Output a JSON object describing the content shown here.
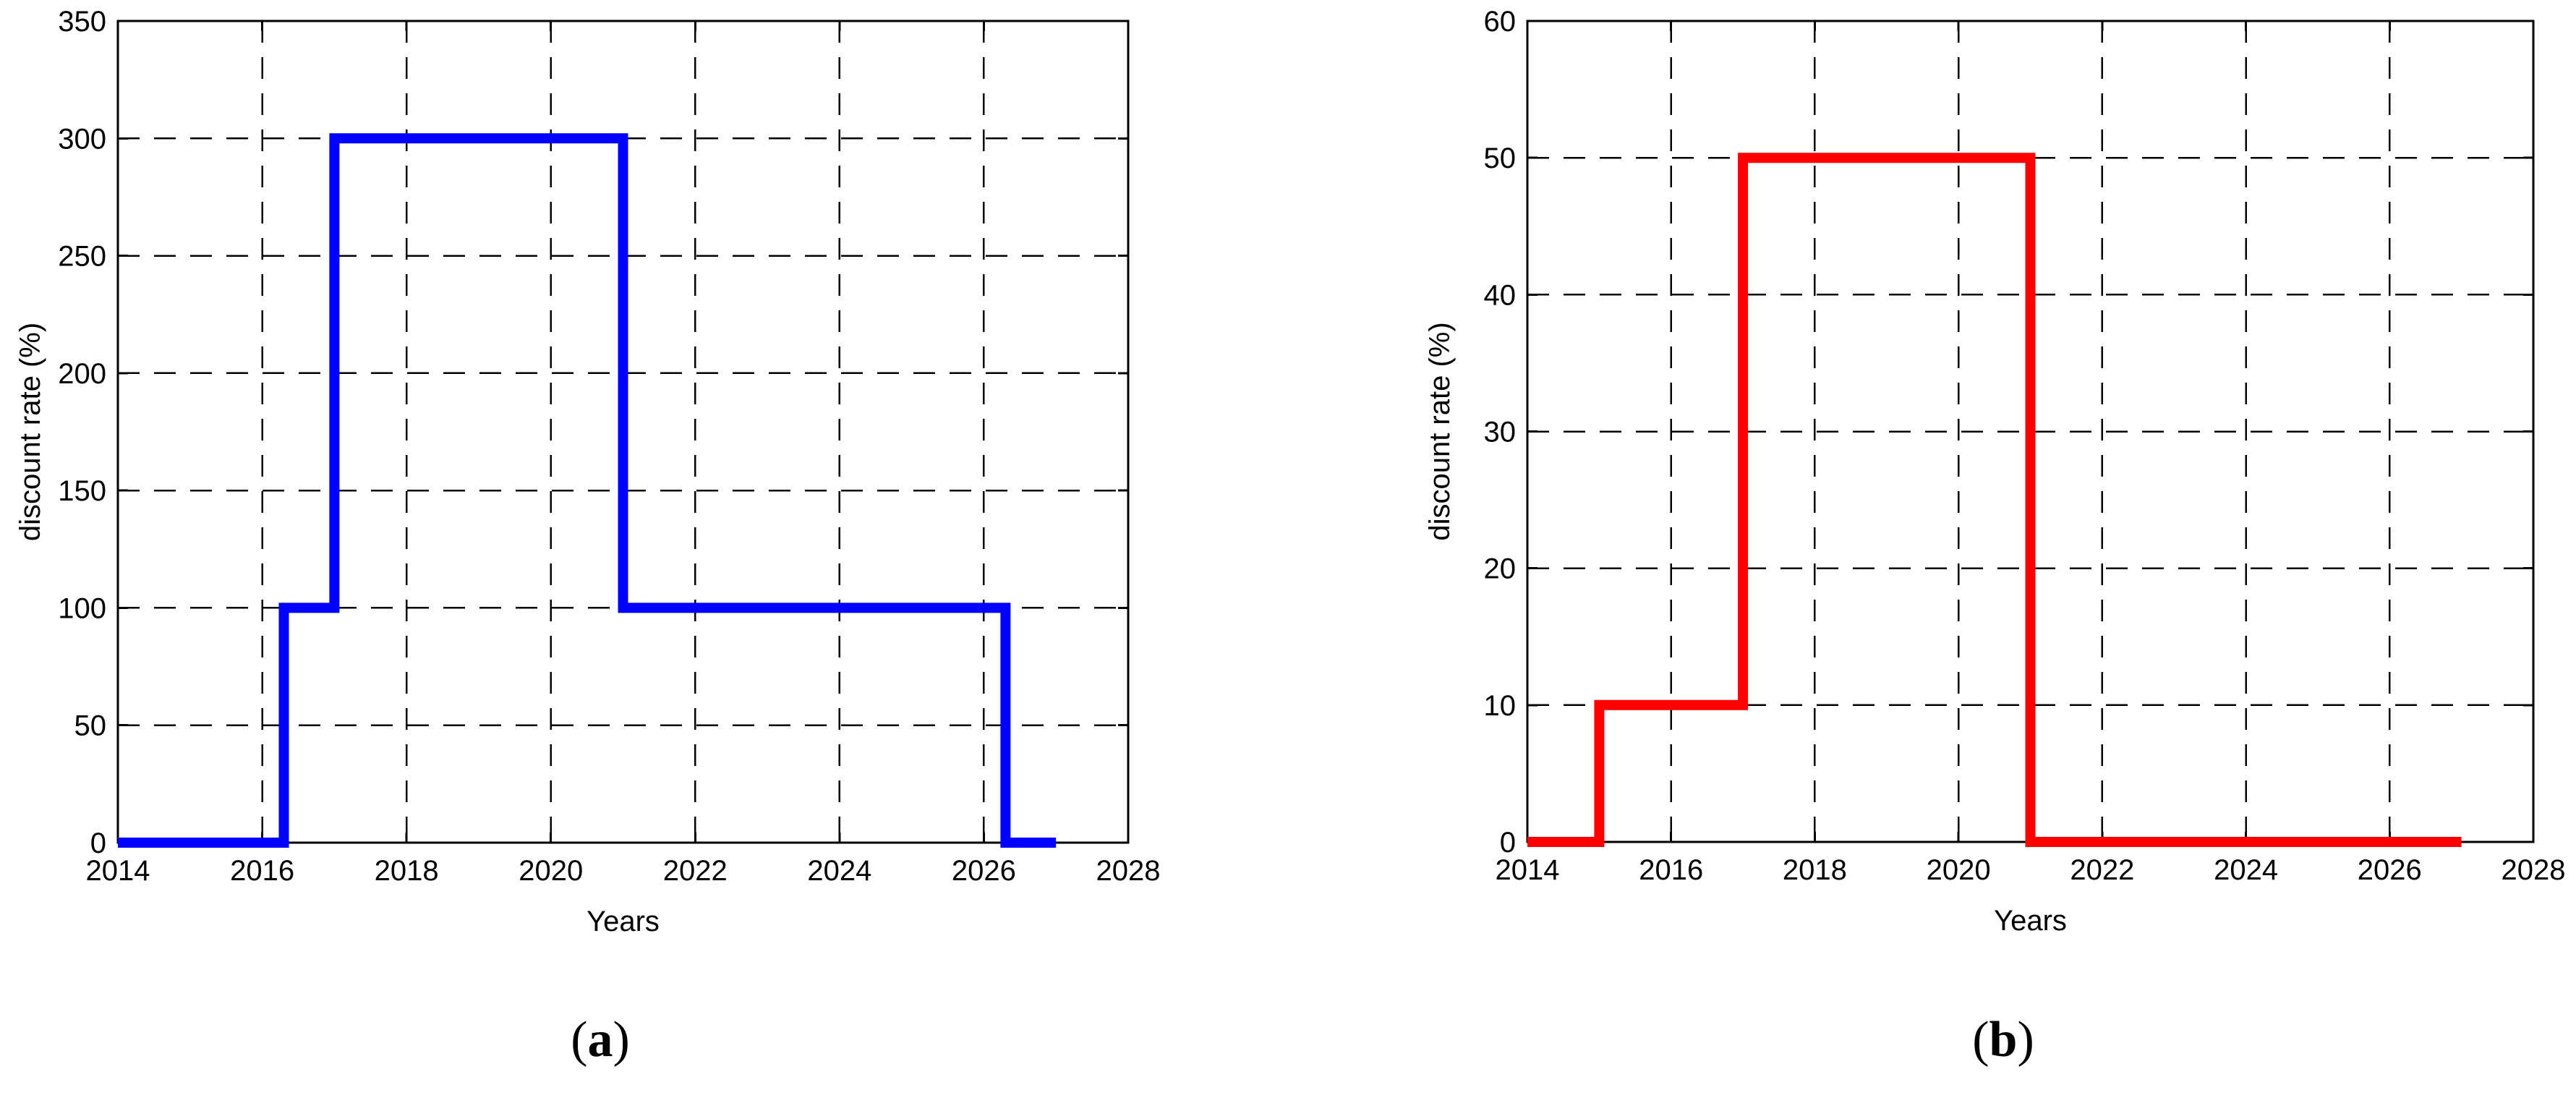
{
  "figure": {
    "background": "#ffffff",
    "text_color": "#000000",
    "grid_color": "#000000",
    "grid_dash": "30 20"
  },
  "captions": {
    "a": {
      "pre": "(",
      "label": "a",
      "post": ")"
    },
    "b": {
      "pre": "(",
      "label": "b",
      "post": ")"
    }
  },
  "chart_data": [
    {
      "id": "a",
      "type": "line",
      "line_style": "step",
      "title": "",
      "xlabel": "Years",
      "ylabel": "discount rate (%)",
      "xlim": [
        2014,
        2028
      ],
      "ylim": [
        0,
        350
      ],
      "xticks": [
        2014,
        2016,
        2018,
        2020,
        2022,
        2024,
        2026,
        2028
      ],
      "yticks": [
        0,
        50,
        100,
        150,
        200,
        250,
        300,
        350
      ],
      "grid": true,
      "legend": "none",
      "series_name": "discount rate",
      "series_color": "#0000ff",
      "line_width": 14,
      "points": [
        [
          2014,
          0
        ],
        [
          2016.3,
          0
        ],
        [
          2016.3,
          100
        ],
        [
          2017,
          100
        ],
        [
          2017,
          300
        ],
        [
          2021,
          300
        ],
        [
          2021,
          100
        ],
        [
          2026.3,
          100
        ],
        [
          2026.3,
          0
        ],
        [
          2027,
          0
        ]
      ]
    },
    {
      "id": "b",
      "type": "line",
      "line_style": "step",
      "title": "",
      "xlabel": "Years",
      "ylabel": "discount rate (%)",
      "xlim": [
        2014,
        2028
      ],
      "ylim": [
        0,
        60
      ],
      "xticks": [
        2014,
        2016,
        2018,
        2020,
        2022,
        2024,
        2026,
        2028
      ],
      "yticks": [
        0,
        10,
        20,
        30,
        40,
        50,
        60
      ],
      "grid": true,
      "legend": "none",
      "series_name": "discount rate",
      "series_color": "#ff0000",
      "line_width": 14,
      "points": [
        [
          2014,
          0
        ],
        [
          2015,
          0
        ],
        [
          2015,
          10
        ],
        [
          2017,
          10
        ],
        [
          2017,
          50
        ],
        [
          2021,
          50
        ],
        [
          2021,
          0
        ],
        [
          2027,
          0
        ]
      ]
    }
  ]
}
